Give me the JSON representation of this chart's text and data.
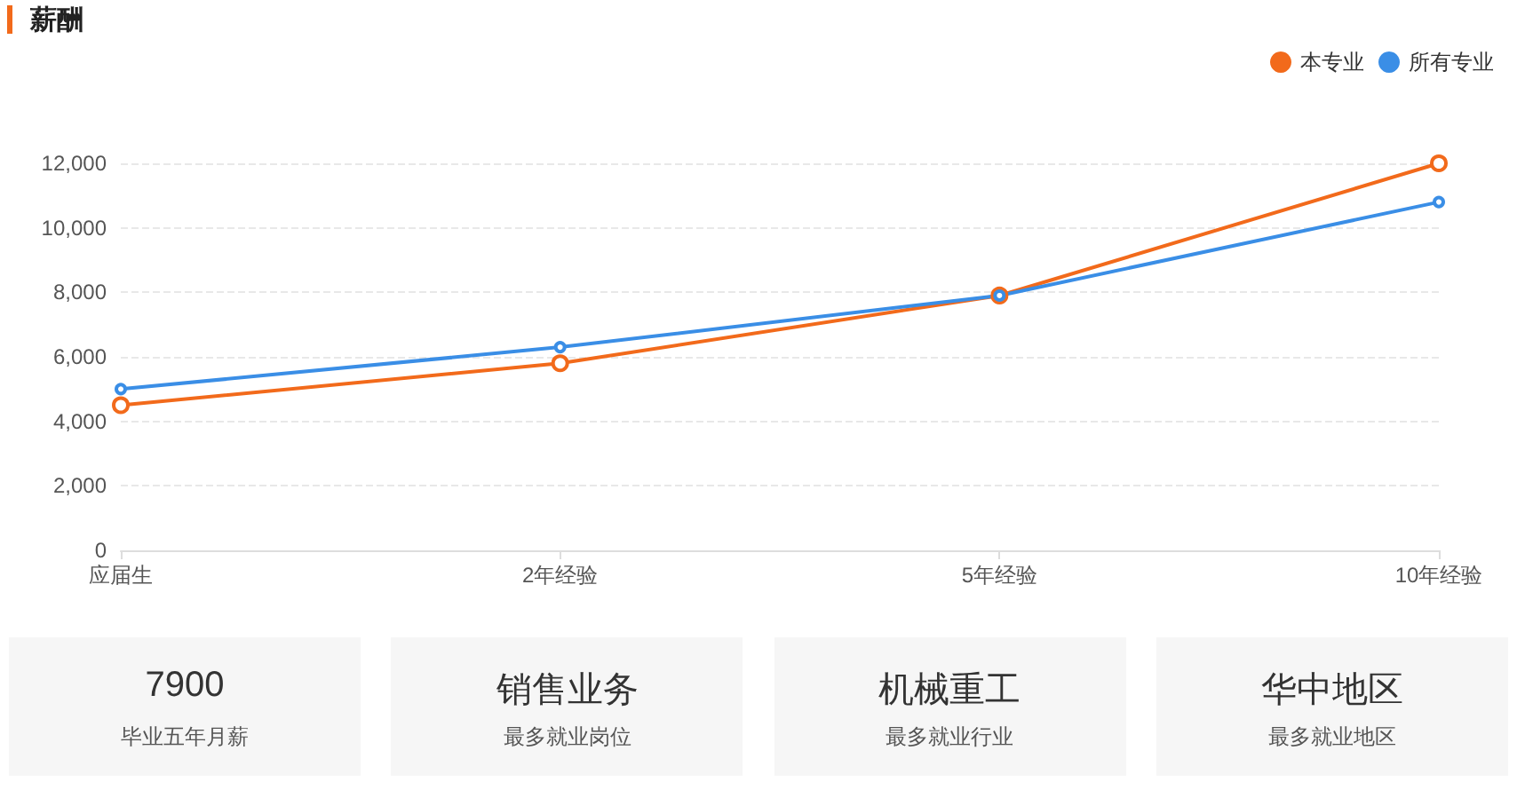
{
  "chart_data": [
    {
      "type": "line",
      "title": "薪酬",
      "categories": [
        "应届生",
        "2年经验",
        "5年经验",
        "10年经验"
      ],
      "series": [
        {
          "name": "本专业",
          "color": "#f26a1b",
          "values": [
            4500,
            5800,
            7900,
            12000
          ]
        },
        {
          "name": "所有专业",
          "color": "#3a8ee6",
          "values": [
            5000,
            6300,
            7900,
            10800
          ]
        }
      ],
      "ylim": [
        0,
        12000
      ],
      "yticks": [
        0,
        {
          "value": 2000,
          "label": "2,000"
        },
        {
          "value": 4000,
          "label": "4,000"
        },
        {
          "value": 6000,
          "label": "6,000"
        },
        {
          "value": 8000,
          "label": "8,000"
        },
        {
          "value": 10000,
          "label": "10,000"
        },
        {
          "value": 12000,
          "label": "12,000"
        }
      ],
      "grid": "y",
      "legend": "top right",
      "marker": "circle",
      "line_style": "solid"
    },
    {
      "type": "other",
      "annotations": [
        "7900",
        "毕业五年月薪",
        "销售业务",
        "最多就业岗位",
        "机械重工",
        "最多就业行业",
        "华中地区",
        "最多就业地区"
      ]
    }
  ]
}
